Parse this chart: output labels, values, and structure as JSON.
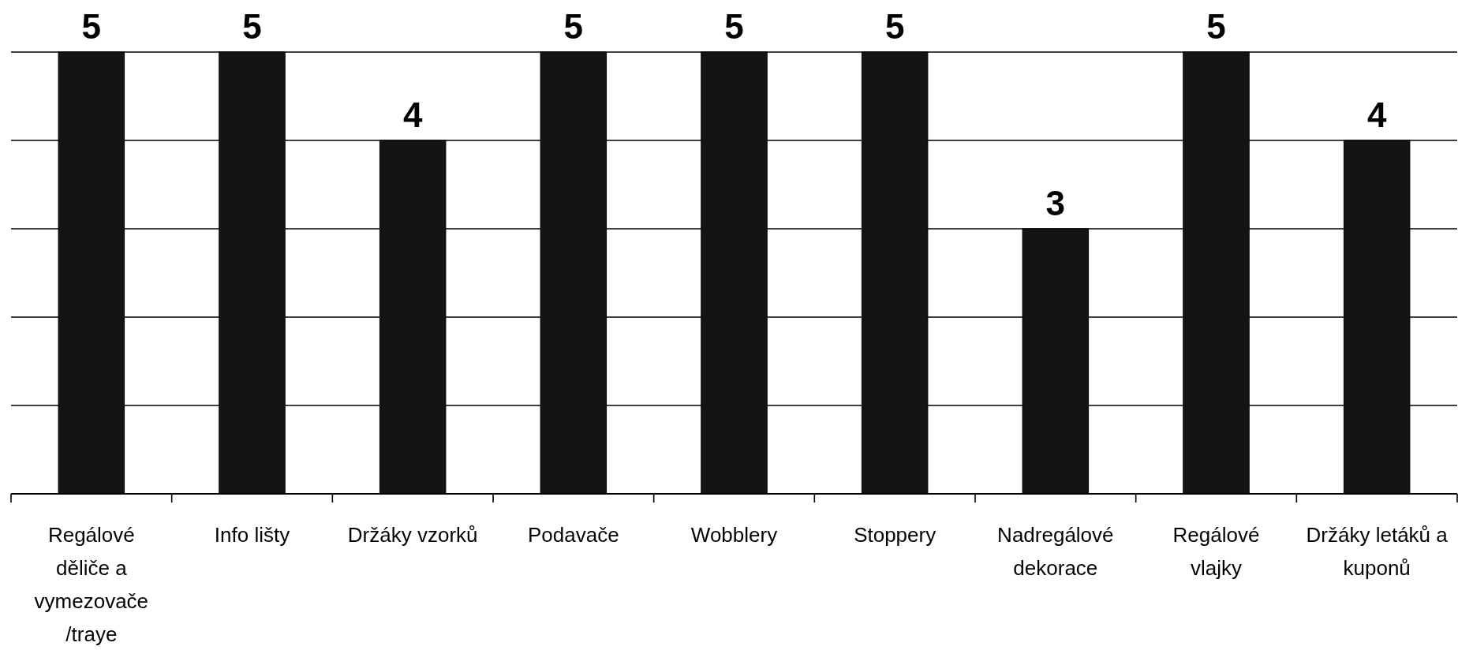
{
  "chart_data": {
    "type": "bar",
    "categories": [
      "Regálové děliče a vymezovače /traye",
      "Info lišty",
      "Držáky vzorků",
      "Podavače",
      "Wobblery",
      "Stoppery",
      "Nadregálové dekorace",
      "Regálové vlajky",
      "Držáky letáků a kuponů"
    ],
    "values": [
      5,
      5,
      4,
      5,
      5,
      5,
      3,
      5,
      4
    ],
    "color": "#141414",
    "ylim": [
      0,
      5
    ],
    "yticks": [
      {
        "value": 0,
        "label": null
      },
      {
        "value": 1,
        "label": null
      },
      {
        "value": 2,
        "label": null
      },
      {
        "value": 3,
        "label": null
      },
      {
        "value": 4,
        "label": null
      },
      {
        "value": 5,
        "label": null
      }
    ],
    "grid": "y",
    "tick_labels": "x",
    "data_labels": true
  }
}
